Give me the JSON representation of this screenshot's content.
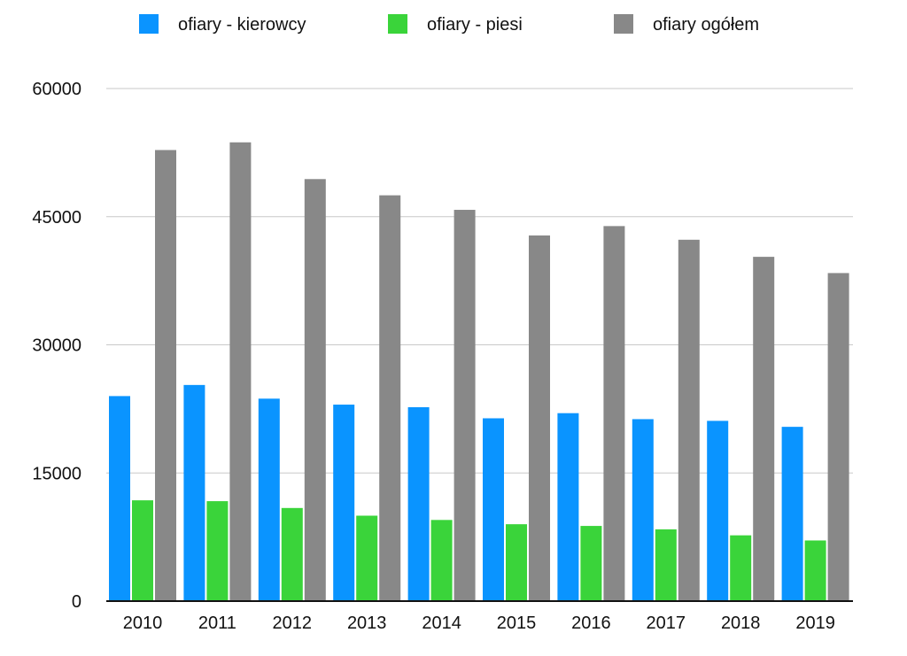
{
  "chart_data": {
    "type": "bar",
    "title": "",
    "xlabel": "",
    "ylabel": "",
    "categories": [
      "2010",
      "2011",
      "2012",
      "2013",
      "2014",
      "2015",
      "2016",
      "2017",
      "2018",
      "2019"
    ],
    "ylim": [
      0,
      60000
    ],
    "yticks": [
      0,
      15000,
      30000,
      45000,
      60000
    ],
    "ytick_labels": [
      "0",
      "15000",
      "30000",
      "45000",
      "60000"
    ],
    "grid": true,
    "legend_position": "top",
    "series": [
      {
        "name": "ofiary - kierowcy",
        "color": "#0a94ff",
        "values": [
          24000,
          25300,
          23700,
          23000,
          22700,
          21400,
          22000,
          21300,
          21100,
          20400
        ]
      },
      {
        "name": "ofiary - piesi",
        "color": "#3ad43a",
        "values": [
          11800,
          11700,
          10900,
          10000,
          9500,
          9000,
          8800,
          8400,
          7700,
          7100
        ]
      },
      {
        "name": "ofiary ogółem",
        "color": "#888888",
        "values": [
          52800,
          53700,
          49400,
          47500,
          45800,
          42800,
          43900,
          42300,
          40300,
          38400
        ]
      }
    ]
  }
}
